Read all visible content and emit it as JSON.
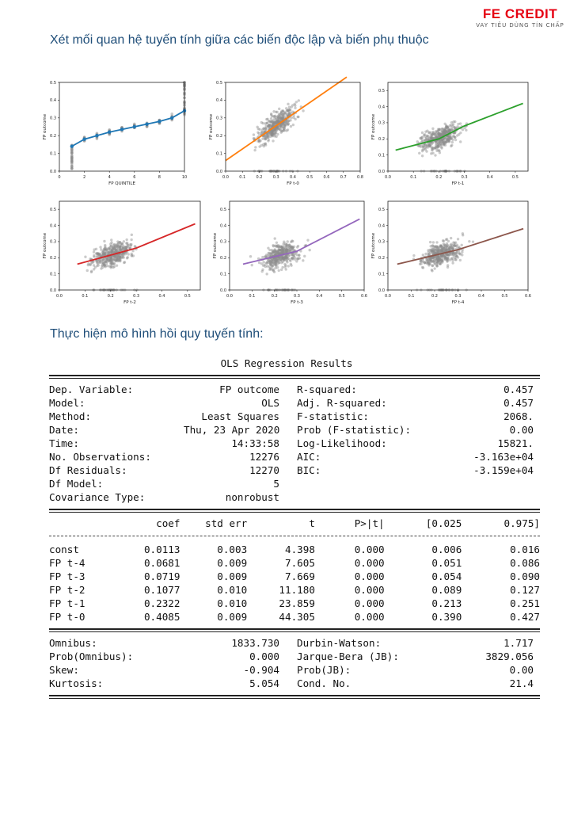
{
  "brand": {
    "name": "FE CREDIT",
    "tagline": "VAY TIÊU DÙNG TÍN CHẤP"
  },
  "section1_heading": "Xét mối quan hệ tuyến tính giữa các biến độc lập và biến phụ thuộc",
  "section2_heading": "Thực hiện mô hình hồi quy tuyến tính:",
  "colors": {
    "heading": "#1f4e79",
    "brand": "#e60012",
    "scatter": "#8c8c8c"
  },
  "chart_data": [
    {
      "type": "scatter",
      "xlabel": "FP QUINTILE",
      "ylabel": "FP outcome",
      "xlim": [
        0,
        10
      ],
      "ylim": [
        0,
        0.5
      ],
      "xticks": [
        "0",
        "2",
        "4",
        "6",
        "8",
        "10"
      ],
      "yticks": [
        "0.0",
        "0.1",
        "0.2",
        "0.3",
        "0.4",
        "0.5"
      ],
      "line_color": "#1f77b4",
      "fit": [
        [
          1,
          0.14
        ],
        [
          2,
          0.18
        ],
        [
          3,
          0.2
        ],
        [
          4,
          0.22
        ],
        [
          5,
          0.235
        ],
        [
          6,
          0.25
        ],
        [
          7,
          0.265
        ],
        [
          8,
          0.28
        ],
        [
          9,
          0.3
        ],
        [
          10,
          0.34
        ]
      ],
      "grid": false
    },
    {
      "type": "scatter",
      "xlabel": "FP t-0",
      "ylabel": "FP outcome",
      "xlim": [
        0,
        0.8
      ],
      "ylim": [
        0,
        0.5
      ],
      "xticks": [
        "0.0",
        "0.1",
        "0.2",
        "0.3",
        "0.4",
        "0.5",
        "0.6",
        "0.7",
        "0.8"
      ],
      "yticks": [
        "0.0",
        "0.1",
        "0.2",
        "0.3",
        "0.4",
        "0.5"
      ],
      "line_color": "#ff7f0e",
      "fit": [
        [
          0,
          0.06
        ],
        [
          0.72,
          0.53
        ]
      ],
      "grid": false
    },
    {
      "type": "scatter",
      "xlabel": "FP t-1",
      "ylabel": "FP outcome",
      "xlim": [
        0,
        0.55
      ],
      "ylim": [
        0,
        0.55
      ],
      "xticks": [
        "0.0",
        "0.1",
        "0.2",
        "0.3",
        "0.4",
        "0.5"
      ],
      "yticks": [
        "0.0",
        "0.1",
        "0.2",
        "0.3",
        "0.4",
        "0.5"
      ],
      "line_color": "#2ca02c",
      "fit": [
        [
          0.03,
          0.13
        ],
        [
          0.2,
          0.2
        ],
        [
          0.3,
          0.28
        ],
        [
          0.53,
          0.42
        ]
      ],
      "grid": false
    },
    {
      "type": "scatter",
      "xlabel": "FP t-2",
      "ylabel": "FP outcome",
      "xlim": [
        0,
        0.55
      ],
      "ylim": [
        0,
        0.55
      ],
      "xticks": [
        "0.0",
        "0.1",
        "0.2",
        "0.3",
        "0.4",
        "0.5"
      ],
      "yticks": [
        "0.0",
        "0.1",
        "0.2",
        "0.3",
        "0.4",
        "0.5"
      ],
      "line_color": "#d62728",
      "fit": [
        [
          0.07,
          0.16
        ],
        [
          0.3,
          0.26
        ],
        [
          0.53,
          0.41
        ]
      ],
      "grid": false
    },
    {
      "type": "scatter",
      "xlabel": "FP t-3",
      "ylabel": "FP outcome",
      "xlim": [
        0,
        0.6
      ],
      "ylim": [
        0,
        0.55
      ],
      "xticks": [
        "0.0",
        "0.1",
        "0.2",
        "0.3",
        "0.4",
        "0.5",
        "0.6"
      ],
      "yticks": [
        "0.0",
        "0.1",
        "0.2",
        "0.3",
        "0.4",
        "0.5"
      ],
      "line_color": "#9467bd",
      "fit": [
        [
          0.06,
          0.16
        ],
        [
          0.3,
          0.24
        ],
        [
          0.58,
          0.44
        ]
      ],
      "grid": false
    },
    {
      "type": "scatter",
      "xlabel": "FP t-4",
      "ylabel": "FP outcome",
      "xlim": [
        0,
        0.6
      ],
      "ylim": [
        0,
        0.55
      ],
      "xticks": [
        "0.0",
        "0.1",
        "0.2",
        "0.3",
        "0.4",
        "0.5",
        "0.6"
      ],
      "yticks": [
        "0.0",
        "0.1",
        "0.2",
        "0.3",
        "0.4",
        "0.5"
      ],
      "line_color": "#8c564b",
      "fit": [
        [
          0.04,
          0.16
        ],
        [
          0.3,
          0.25
        ],
        [
          0.58,
          0.38
        ]
      ],
      "grid": false
    }
  ],
  "ols": {
    "title": "OLS Regression Results",
    "rule_eq": "",
    "summary": [
      [
        "Dep. Variable:",
        "FP outcome",
        "R-squared:",
        "0.457"
      ],
      [
        "Model:",
        "OLS",
        "Adj. R-squared:",
        "0.457"
      ],
      [
        "Method:",
        "Least Squares",
        "F-statistic:",
        "2068."
      ],
      [
        "Date:",
        "Thu, 23 Apr 2020",
        "Prob (F-statistic):",
        "0.00"
      ],
      [
        "Time:",
        "14:33:58",
        "Log-Likelihood:",
        "15821."
      ],
      [
        "No. Observations:",
        "12276",
        "AIC:",
        "-3.163e+04"
      ],
      [
        "Df Residuals:",
        "12270",
        "BIC:",
        "-3.159e+04"
      ],
      [
        "Df Model:",
        "5",
        "",
        ""
      ],
      [
        "Covariance Type:",
        "nonrobust",
        "",
        ""
      ]
    ],
    "coef_header": [
      "",
      "coef",
      "std err",
      "t",
      "P>|t|",
      "[0.025",
      "0.975]"
    ],
    "coef_rows": [
      [
        "const",
        "0.0113",
        "0.003",
        "4.398",
        "0.000",
        "0.006",
        "0.016"
      ],
      [
        "FP t-4",
        "0.0681",
        "0.009",
        "7.605",
        "0.000",
        "0.051",
        "0.086"
      ],
      [
        "FP t-3",
        "0.0719",
        "0.009",
        "7.669",
        "0.000",
        "0.054",
        "0.090"
      ],
      [
        "FP t-2",
        "0.1077",
        "0.010",
        "11.180",
        "0.000",
        "0.089",
        "0.127"
      ],
      [
        "FP t-1",
        "0.2322",
        "0.010",
        "23.859",
        "0.000",
        "0.213",
        "0.251"
      ],
      [
        "FP t-0",
        "0.4085",
        "0.009",
        "44.305",
        "0.000",
        "0.390",
        "0.427"
      ]
    ],
    "diagnostics": [
      [
        "Omnibus:",
        "1833.730",
        "Durbin-Watson:",
        "1.717"
      ],
      [
        "Prob(Omnibus):",
        "0.000",
        "Jarque-Bera (JB):",
        "3829.056"
      ],
      [
        "Skew:",
        "-0.904",
        "Prob(JB):",
        "0.00"
      ],
      [
        "Kurtosis:",
        "5.054",
        "Cond. No.",
        "21.4"
      ]
    ]
  }
}
